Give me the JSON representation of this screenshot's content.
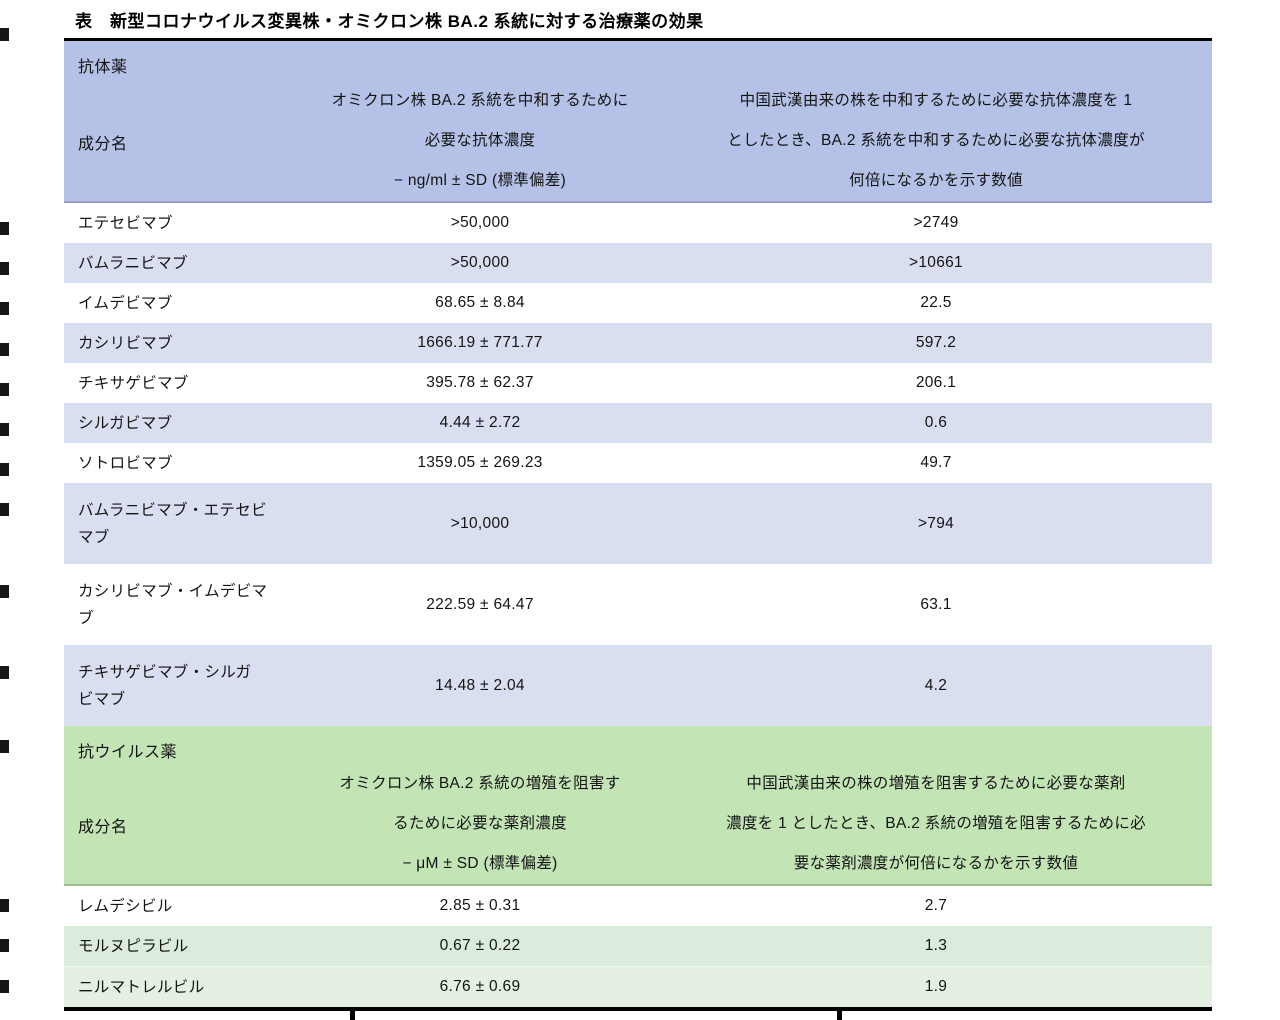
{
  "title": "表　新型コロナウイルス変異株・オミクロン株 BA.2 系統に対する治療薬の効果",
  "colors": {
    "antibody_header_bg": "#b5c1e6",
    "antibody_row_alt_bg": "#d9def0",
    "antiviral_header_bg": "#c3e4b5",
    "antiviral_row_alt_bg": "#dcecdc"
  },
  "antibody": {
    "class_label": "抗体薬",
    "component_label": "成分名",
    "col2_header_lines": [
      "オミクロン株 BA.2 系統を中和するために",
      "必要な抗体濃度",
      "− ng/ml ± SD (標準偏差)"
    ],
    "col3_header_lines": [
      "中国武漢由来の株を中和するために必要な抗体濃度を 1",
      "としたとき、BA.2 系統を中和するために必要な抗体濃度が",
      "何倍になるかを示す数値"
    ],
    "rows": [
      {
        "name": "エテセビマブ",
        "conc": ">50,000",
        "fold": ">2749"
      },
      {
        "name": "バムラニビマブ",
        "conc": ">50,000",
        "fold": ">10661"
      },
      {
        "name": "イムデビマブ",
        "conc": "68.65 ± 8.84",
        "fold": "22.5"
      },
      {
        "name": "カシリビマブ",
        "conc": "1666.19 ± 771.77",
        "fold": "597.2"
      },
      {
        "name": "チキサゲビマブ",
        "conc": "395.78 ± 62.37",
        "fold": "206.1"
      },
      {
        "name": "シルガビマブ",
        "conc": "4.44 ± 2.72",
        "fold": "0.6"
      },
      {
        "name": "ソトロビマブ",
        "conc": "1359.05 ± 269.23",
        "fold": "49.7"
      },
      {
        "name": "バムラニビマブ・エテセビ\nマブ",
        "conc": ">10,000",
        "fold": ">794"
      },
      {
        "name": "カシリビマブ・イムデビマ\nブ",
        "conc": "222.59 ± 64.47",
        "fold": "63.1"
      },
      {
        "name": "チキサゲビマブ・シルガ\nビマブ",
        "conc": "14.48 ± 2.04",
        "fold": "4.2"
      }
    ]
  },
  "antiviral": {
    "class_label": "抗ウイルス薬",
    "component_label": "成分名",
    "col2_header_lines": [
      "オミクロン株 BA.2 系統の増殖を阻害す",
      "るために必要な薬剤濃度",
      "− μM ± SD (標準偏差)"
    ],
    "col3_header_lines": [
      "中国武漢由来の株の増殖を阻害するために必要な薬剤",
      "濃度を 1 としたとき、BA.2 系統の増殖を阻害するために必",
      "要な薬剤濃度が何倍になるかを示す数値"
    ],
    "rows": [
      {
        "name": "レムデシビル",
        "conc": "2.85 ± 0.31",
        "fold": "2.7"
      },
      {
        "name": "モルヌピラビル",
        "conc": "0.67 ± 0.22",
        "fold": "1.3"
      },
      {
        "name": "ニルマトレルビル",
        "conc": "6.76 ± 0.69",
        "fold": "1.9"
      }
    ]
  }
}
